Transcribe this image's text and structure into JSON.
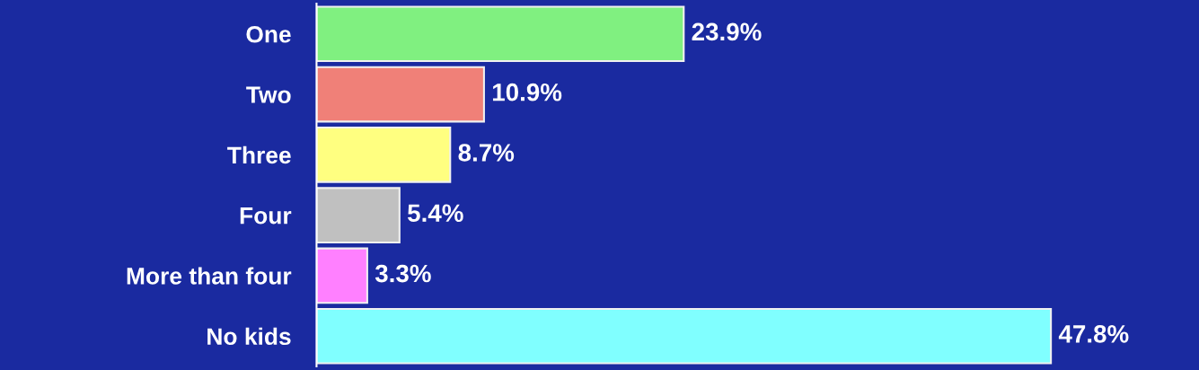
{
  "chart_data": {
    "type": "bar",
    "orientation": "horizontal",
    "categories": [
      "One",
      "Two",
      "Three",
      "Four",
      "More than four",
      "No kids"
    ],
    "values": [
      23.9,
      10.9,
      8.7,
      5.4,
      3.3,
      47.8
    ],
    "colors": [
      "#80f080",
      "#f08078",
      "#ffff80",
      "#c0c0c0",
      "#ff80ff",
      "#80ffff"
    ],
    "value_labels": [
      "23.9%",
      "10.9%",
      "8.7%",
      "5.4%",
      "3.3%",
      "47.8%"
    ],
    "grid": false,
    "legend": false
  }
}
